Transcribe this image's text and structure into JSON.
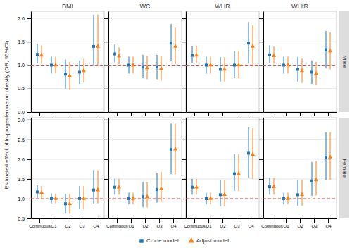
{
  "chart_data": [
    {
      "type": "scatter",
      "title": "BMI",
      "ylabel": "Estimated effect of ln-progesterone on obesity (OR, 95%CI)",
      "legend": "bottom",
      "categories": [
        "Continuous",
        "Q1",
        "Q2",
        "Q3",
        "Q4"
      ],
      "ylim": [
        0.0,
        2.15
      ],
      "yticks": [
        {
          "value": 0.0,
          "label": "0.0"
        },
        0.5,
        {
          "value": 1.0,
          "label": "1.0"
        },
        1.5,
        {
          "value": 2.0,
          "label": "2.0"
        }
      ],
      "grid": true,
      "tick_labels": "y",
      "annotations": [
        {
          "type": "hline",
          "y": 1.0,
          "color": "#d9534f",
          "line_style": "dashed"
        }
      ],
      "series": [
        {
          "name": "Crude model",
          "marker": "square",
          "values": [
            1.23,
            1.0,
            0.81,
            0.85,
            1.4
          ],
          "lo": [
            1.05,
            0.82,
            0.5,
            0.6,
            1.0
          ],
          "hi": [
            1.45,
            1.18,
            1.12,
            1.1,
            2.08
          ]
        },
        {
          "name": "Adjust model",
          "marker": "triangle",
          "values": [
            1.21,
            1.0,
            0.77,
            0.88,
            1.4
          ],
          "lo": [
            1.03,
            0.82,
            0.47,
            0.63,
            1.0
          ],
          "hi": [
            1.42,
            1.18,
            1.07,
            1.13,
            2.08
          ]
        }
      ]
    },
    {
      "type": "scatter",
      "title": "WC",
      "categories": [
        "Continuous",
        "Q1",
        "Q2",
        "Q3",
        "Q4"
      ],
      "ylim": [
        0.0,
        2.15
      ],
      "yticks": [
        {
          "value": 0.0,
          "label": "0.0"
        },
        0.5,
        {
          "value": 1.0,
          "label": "1.0"
        },
        1.5,
        {
          "value": 2.0,
          "label": "2.0"
        }
      ],
      "grid": true,
      "tick_labels": false,
      "annotations": [
        {
          "type": "hline",
          "y": 1.0,
          "color": "#d9534f",
          "line_style": "dashed"
        }
      ],
      "series": [
        {
          "name": "Crude model",
          "marker": "square",
          "values": [
            1.24,
            1.0,
            0.96,
            0.96,
            1.47
          ],
          "lo": [
            1.06,
            0.82,
            0.72,
            0.7,
            1.08
          ],
          "hi": [
            1.44,
            1.18,
            1.22,
            1.22,
            1.88
          ]
        },
        {
          "name": "Adjust model",
          "marker": "triangle",
          "values": [
            1.19,
            1.0,
            0.94,
            0.93,
            1.4
          ],
          "lo": [
            1.02,
            0.82,
            0.7,
            0.67,
            1.02
          ],
          "hi": [
            1.38,
            1.18,
            1.2,
            1.19,
            1.8
          ]
        }
      ]
    },
    {
      "type": "scatter",
      "title": "WHR",
      "categories": [
        "Continuous",
        "Q1",
        "Q2",
        "Q3",
        "Q4"
      ],
      "ylim": [
        0.0,
        2.15
      ],
      "yticks": [
        {
          "value": 0.0,
          "label": "0.0"
        },
        0.5,
        {
          "value": 1.0,
          "label": "1.0"
        },
        1.5,
        {
          "value": 2.0,
          "label": "2.0"
        }
      ],
      "grid": true,
      "tick_labels": false,
      "annotations": [
        {
          "type": "hline",
          "y": 1.0,
          "color": "#d9534f",
          "line_style": "dashed"
        }
      ],
      "series": [
        {
          "name": "Crude model",
          "marker": "square",
          "values": [
            1.21,
            1.0,
            0.91,
            1.0,
            1.47
          ],
          "lo": [
            1.04,
            0.82,
            0.65,
            0.72,
            1.05
          ],
          "hi": [
            1.41,
            1.18,
            1.17,
            1.3,
            1.92
          ]
        },
        {
          "name": "Adjust model",
          "marker": "triangle",
          "values": [
            1.21,
            1.0,
            0.91,
            1.0,
            1.4
          ],
          "lo": [
            1.04,
            0.82,
            0.65,
            0.72,
            0.97
          ],
          "hi": [
            1.41,
            1.18,
            1.17,
            1.3,
            1.85
          ]
        }
      ]
    },
    {
      "type": "scatter",
      "title": "WHtR",
      "categories": [
        "Continuous",
        "Q1",
        "Q2",
        "Q3",
        "Q4"
      ],
      "ylim": [
        0.0,
        2.15
      ],
      "yticks": [
        {
          "value": 0.0,
          "label": "0.0"
        },
        0.5,
        {
          "value": 1.0,
          "label": "1.0"
        },
        1.5,
        {
          "value": 2.0,
          "label": "2.0"
        }
      ],
      "grid": true,
      "tick_labels": false,
      "annotations": [
        {
          "type": "hline",
          "y": 1.0,
          "color": "#d9534f",
          "line_style": "dashed"
        },
        {
          "type": "text",
          "text": "Male"
        }
      ],
      "series": [
        {
          "name": "Crude model",
          "marker": "square",
          "values": [
            1.22,
            1.0,
            0.91,
            0.85,
            1.33
          ],
          "lo": [
            1.05,
            0.82,
            0.65,
            0.6,
            0.93
          ],
          "hi": [
            1.42,
            1.18,
            1.17,
            1.1,
            1.73
          ]
        },
        {
          "name": "Adjust model",
          "marker": "triangle",
          "values": [
            1.2,
            1.0,
            0.88,
            0.82,
            1.3
          ],
          "lo": [
            1.03,
            0.82,
            0.62,
            0.58,
            0.91
          ],
          "hi": [
            1.4,
            1.18,
            1.14,
            1.07,
            1.7
          ]
        }
      ]
    },
    {
      "type": "scatter",
      "categories": [
        "Continuous",
        "Q1",
        "Q2",
        "Q3",
        "Q4"
      ],
      "ylim": [
        0.5,
        3.05
      ],
      "yticks": [
        0.5,
        {
          "value": 1.0,
          "label": "1.0"
        },
        1.5,
        {
          "value": 2.0,
          "label": "2.0"
        },
        2.5,
        {
          "value": 3.0,
          "label": "3.0"
        }
      ],
      "grid": true,
      "annotations": [
        {
          "type": "hline",
          "y": 1.0,
          "color": "#d9534f",
          "line_style": "dashed"
        }
      ],
      "series": [
        {
          "name": "Crude model",
          "marker": "square",
          "values": [
            1.17,
            1.0,
            0.87,
            1.0,
            1.22
          ],
          "lo": [
            1.02,
            0.88,
            0.62,
            0.73,
            0.88
          ],
          "hi": [
            1.34,
            1.13,
            1.12,
            1.32,
            1.72
          ]
        },
        {
          "name": "Adjust model",
          "marker": "triangle",
          "values": [
            1.15,
            1.0,
            0.87,
            1.0,
            1.22
          ],
          "lo": [
            1.0,
            0.88,
            0.62,
            0.73,
            0.88
          ],
          "hi": [
            1.32,
            1.13,
            1.12,
            1.32,
            1.72
          ]
        }
      ]
    },
    {
      "type": "scatter",
      "categories": [
        "Continuous",
        "Q1",
        "Q2",
        "Q3",
        "Q4"
      ],
      "ylim": [
        0.5,
        3.05
      ],
      "yticks": [
        0.5,
        {
          "value": 1.0,
          "label": "1.0"
        },
        1.5,
        {
          "value": 2.0,
          "label": "2.0"
        },
        2.5,
        {
          "value": 3.0,
          "label": "3.0"
        }
      ],
      "grid": true,
      "tick_labels": "x",
      "annotations": [
        {
          "type": "hline",
          "y": 1.0,
          "color": "#d9534f",
          "line_style": "dashed"
        }
      ],
      "series": [
        {
          "name": "Crude model",
          "marker": "square",
          "values": [
            1.29,
            1.0,
            1.05,
            1.23,
            2.25
          ],
          "lo": [
            1.1,
            0.86,
            0.78,
            0.9,
            1.62
          ],
          "hi": [
            1.5,
            1.15,
            1.42,
            1.65,
            2.9
          ]
        },
        {
          "name": "Adjust model",
          "marker": "triangle",
          "values": [
            1.29,
            1.0,
            1.05,
            1.25,
            2.25
          ],
          "lo": [
            1.1,
            0.86,
            0.78,
            0.92,
            1.62
          ],
          "hi": [
            1.5,
            1.15,
            1.42,
            1.68,
            2.9
          ]
        }
      ]
    },
    {
      "type": "scatter",
      "categories": [
        "Continuous",
        "Q1",
        "Q2",
        "Q3",
        "Q4"
      ],
      "ylim": [
        0.5,
        3.05
      ],
      "yticks": [
        0.5,
        {
          "value": 1.0,
          "label": "1.0"
        },
        1.5,
        {
          "value": 2.0,
          "label": "2.0"
        },
        2.5,
        {
          "value": 3.0,
          "label": "3.0"
        }
      ],
      "grid": true,
      "tick_labels": "x",
      "annotations": [
        {
          "type": "hline",
          "y": 1.0,
          "color": "#d9534f",
          "line_style": "dashed"
        }
      ],
      "series": [
        {
          "name": "Crude model",
          "marker": "square",
          "values": [
            1.29,
            1.0,
            1.1,
            1.63,
            2.15
          ],
          "lo": [
            1.1,
            0.86,
            0.82,
            1.2,
            1.53
          ],
          "hi": [
            1.5,
            1.15,
            1.47,
            2.13,
            2.82
          ]
        },
        {
          "name": "Adjust model",
          "marker": "triangle",
          "values": [
            1.29,
            1.0,
            1.1,
            1.63,
            2.12
          ],
          "lo": [
            1.1,
            0.86,
            0.82,
            1.2,
            1.5
          ],
          "hi": [
            1.5,
            1.15,
            1.47,
            2.13,
            2.8
          ]
        }
      ]
    },
    {
      "type": "scatter",
      "categories": [
        "Continuous",
        "Q1",
        "Q2",
        "Q3",
        "Q4"
      ],
      "ylim": [
        0.5,
        3.05
      ],
      "yticks": [
        0.5,
        {
          "value": 1.0,
          "label": "1.0"
        },
        1.5,
        {
          "value": 2.0,
          "label": "2.0"
        },
        2.5,
        {
          "value": 3.0,
          "label": "3.0"
        }
      ],
      "grid": true,
      "tick_labels": "x",
      "annotations": [
        {
          "type": "hline",
          "y": 1.0,
          "color": "#d9534f",
          "line_style": "dashed"
        },
        {
          "type": "text",
          "text": "Female"
        }
      ],
      "series": [
        {
          "name": "Crude model",
          "marker": "square",
          "values": [
            1.3,
            1.0,
            1.1,
            1.45,
            2.05
          ],
          "lo": [
            1.1,
            0.86,
            0.82,
            1.07,
            1.48
          ],
          "hi": [
            1.52,
            1.15,
            1.47,
            1.93,
            2.68
          ]
        },
        {
          "name": "Adjust model",
          "marker": "triangle",
          "values": [
            1.3,
            1.0,
            1.1,
            1.47,
            2.05
          ],
          "lo": [
            1.1,
            0.86,
            0.82,
            1.08,
            1.48
          ],
          "hi": [
            1.52,
            1.15,
            1.47,
            1.95,
            2.68
          ]
        }
      ]
    }
  ]
}
